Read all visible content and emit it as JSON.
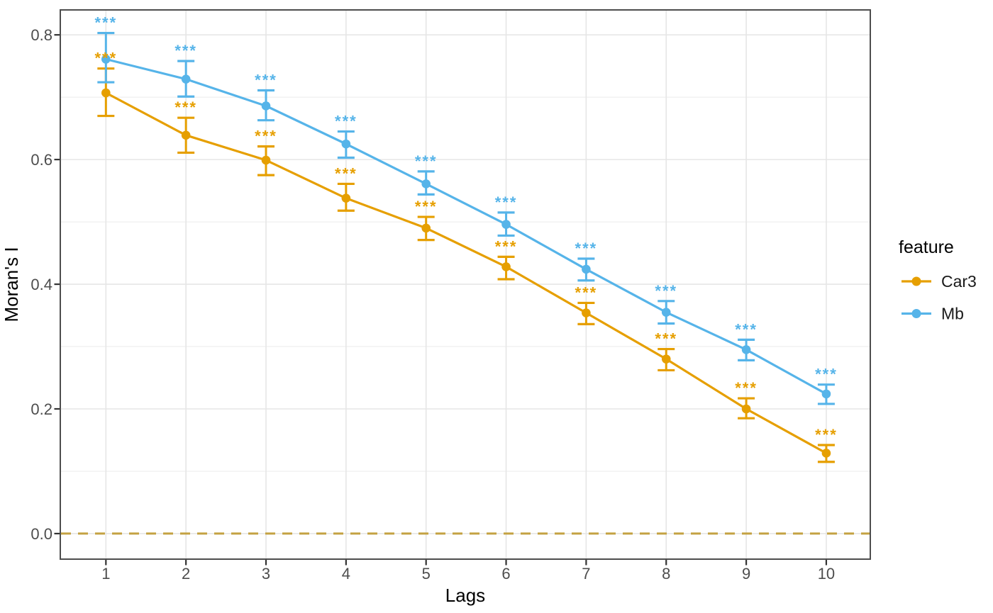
{
  "chart_data": {
    "type": "line",
    "title": "",
    "xlabel": "Lags",
    "ylabel": "Moran's I",
    "legend_title": "feature",
    "legend_position": "right",
    "x": [
      1,
      2,
      3,
      4,
      5,
      6,
      7,
      8,
      9,
      10
    ],
    "xlim": [
      0.43,
      10.55
    ],
    "ylim": [
      -0.041,
      0.84
    ],
    "yticks": [
      0.0,
      0.2,
      0.4,
      0.6,
      0.8
    ],
    "ytick_labels": [
      "0.0",
      "0.2",
      "0.4",
      "0.6",
      "0.8"
    ],
    "yminor": [
      0.1,
      0.3,
      0.5,
      0.7
    ],
    "grid": true,
    "hline": {
      "y": 0.0,
      "style": "dashed",
      "color": "#C4A242"
    },
    "series": [
      {
        "name": "Car3",
        "color": "#E69F00",
        "values": [
          0.707,
          0.639,
          0.599,
          0.538,
          0.49,
          0.428,
          0.354,
          0.28,
          0.2,
          0.129
        ],
        "lower": [
          0.67,
          0.611,
          0.575,
          0.518,
          0.471,
          0.408,
          0.336,
          0.262,
          0.185,
          0.115
        ],
        "upper": [
          0.746,
          0.667,
          0.621,
          0.561,
          0.508,
          0.444,
          0.37,
          0.296,
          0.217,
          0.142
        ],
        "significance": [
          "***",
          "***",
          "***",
          "***",
          "***",
          "***",
          "***",
          "***",
          "***",
          "***"
        ]
      },
      {
        "name": "Mb",
        "color": "#56B4E9",
        "values": [
          0.761,
          0.729,
          0.686,
          0.625,
          0.561,
          0.496,
          0.424,
          0.355,
          0.295,
          0.224
        ],
        "lower": [
          0.724,
          0.701,
          0.663,
          0.603,
          0.544,
          0.478,
          0.406,
          0.337,
          0.278,
          0.208
        ],
        "upper": [
          0.803,
          0.758,
          0.711,
          0.645,
          0.581,
          0.515,
          0.441,
          0.373,
          0.311,
          0.239
        ],
        "significance": [
          "***",
          "***",
          "***",
          "***",
          "***",
          "***",
          "***",
          "***",
          "***",
          "***"
        ]
      }
    ]
  },
  "colors": {
    "background": "#FFFFFF",
    "grid_major": "#E6E6E6",
    "grid_minor": "#EFEFEF",
    "panel_border": "#4D4D4D",
    "tick_mark": "#333333",
    "tick_label": "#4D4D4D",
    "axis_title": "#000000"
  }
}
